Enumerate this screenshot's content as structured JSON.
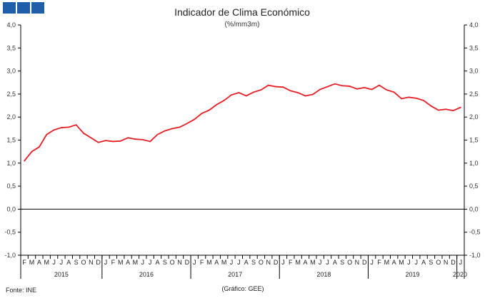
{
  "chart_data": {
    "type": "line",
    "title": "Indicador de Clima Económico",
    "subtitle": "(%/mm3m)",
    "ylim": [
      -1.0,
      4.0
    ],
    "yticks": [
      "4,0",
      "3,5",
      "3,0",
      "2,5",
      "2,0",
      "1,5",
      "1,0",
      "0,5",
      "0,0",
      "-0,5",
      "-1,0"
    ],
    "grid": false,
    "series_color": "#e31e24",
    "month_labels": [
      "F",
      "M",
      "A",
      "M",
      "J",
      "J",
      "A",
      "S",
      "O",
      "N",
      "D",
      "J",
      "F",
      "M",
      "A",
      "M",
      "J",
      "J",
      "A",
      "S",
      "O",
      "N",
      "D",
      "J",
      "F",
      "M",
      "A",
      "M",
      "J",
      "J",
      "A",
      "S",
      "O",
      "N",
      "D",
      "J",
      "F",
      "M",
      "A",
      "M",
      "J",
      "J",
      "A",
      "S",
      "O",
      "N",
      "D",
      "J",
      "F",
      "M",
      "A",
      "M",
      "J",
      "J",
      "A",
      "S",
      "O",
      "N",
      "D",
      "J"
    ],
    "years": [
      "2015",
      "2016",
      "2017",
      "2018",
      "2019",
      "2020"
    ],
    "series": [
      {
        "values": [
          1.05,
          1.25,
          1.35,
          1.62,
          1.72,
          1.77,
          1.78,
          1.83,
          1.65,
          1.55,
          1.45,
          1.49,
          1.47,
          1.48,
          1.55,
          1.52,
          1.51,
          1.47,
          1.62,
          1.7,
          1.75,
          1.78,
          1.86,
          1.95,
          2.08,
          2.15,
          2.27,
          2.36,
          2.48,
          2.53,
          2.46,
          2.54,
          2.59,
          2.69,
          2.66,
          2.65,
          2.57,
          2.53,
          2.46,
          2.49,
          2.6,
          2.66,
          2.72,
          2.68,
          2.67,
          2.61,
          2.64,
          2.6,
          2.69,
          2.59,
          2.54,
          2.4,
          2.43,
          2.41,
          2.36,
          2.24,
          2.15,
          2.17,
          2.14,
          2.21
        ]
      }
    ]
  },
  "footer": {
    "source": "Fonte: INE",
    "credit": "(Gráfico: GEE)"
  },
  "logo": {
    "color": "#1f5ea8"
  }
}
